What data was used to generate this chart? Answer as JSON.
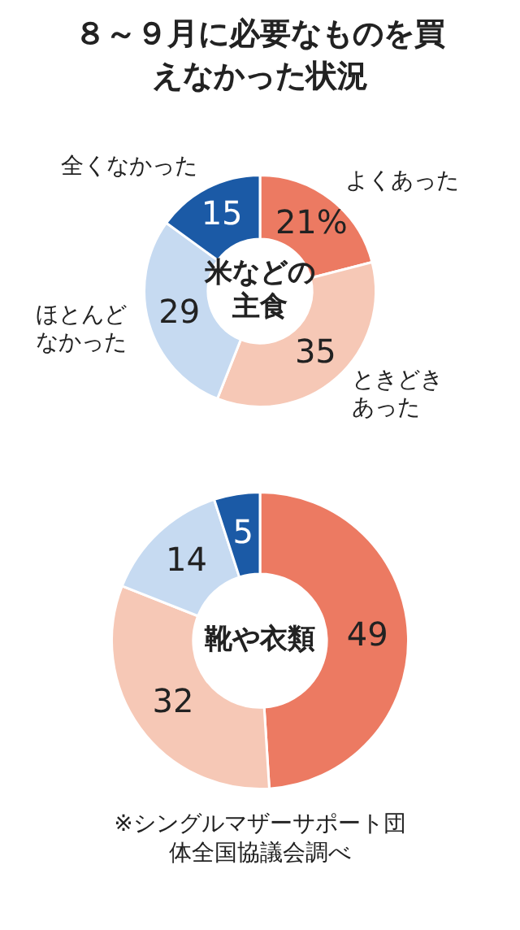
{
  "chart_data": [
    {
      "type": "donut",
      "title": "８～９月に必要なものを買えなかった状況",
      "subtitle": "米などの主食",
      "categories": [
        "よくあった",
        "ときどきあった",
        "ほとんどなかった",
        "全くなかった"
      ],
      "values": [
        21,
        35,
        29,
        15
      ],
      "colors": [
        "#ec7a62",
        "#f6c8b6",
        "#c6daf1",
        "#1b5aa6"
      ],
      "value_labels": [
        "21%",
        "35",
        "29",
        "15"
      ],
      "legend": false
    },
    {
      "type": "donut",
      "title": "靴や衣類",
      "categories": [
        null,
        null,
        null,
        null
      ],
      "values": [
        49,
        32,
        14,
        5
      ],
      "colors": [
        "#ec7a62",
        "#f6c8b6",
        "#c6daf1",
        "#1b5aa6"
      ],
      "data_labels": true,
      "legend": false,
      "annotations": [
        "※シングルマザーサポート団体全国協議会調べ"
      ]
    }
  ]
}
